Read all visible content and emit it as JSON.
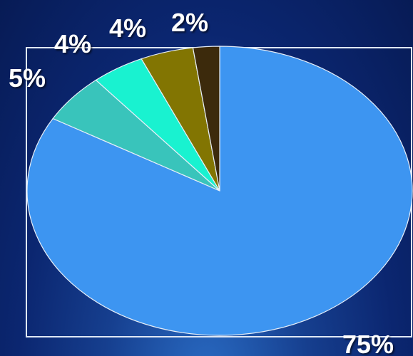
{
  "chart_data": {
    "type": "pie",
    "slices": [
      {
        "value": 75,
        "label": "75%",
        "color": "#3d95f1"
      },
      {
        "value": 5,
        "label": "5%",
        "color": "#39c4bb"
      },
      {
        "value": 4,
        "label": "4%",
        "color": "#19f2d0"
      },
      {
        "value": 4,
        "label": "4%",
        "color": "#827502"
      },
      {
        "value": 2,
        "label": "2%",
        "color": "#3c2a0c"
      }
    ],
    "start_angle": "12 o'clock",
    "direction": "clockwise",
    "legend": "none",
    "frame": true
  }
}
